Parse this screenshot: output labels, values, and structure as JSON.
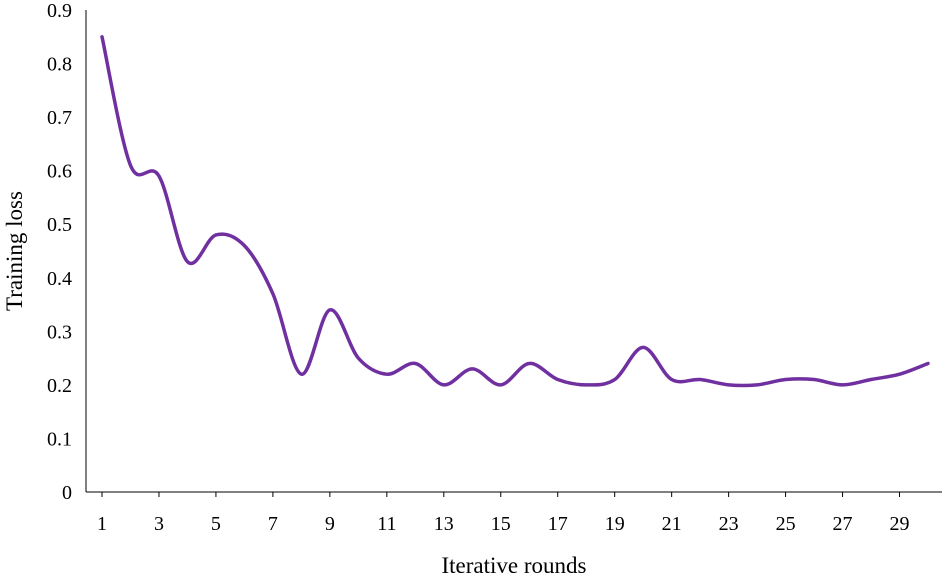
{
  "chart_data": {
    "type": "line",
    "title": "",
    "xlabel": "Iterative rounds",
    "ylabel": "Training loss",
    "xlim": [
      1,
      30
    ],
    "ylim": [
      0,
      0.9
    ],
    "x_ticks": [
      1,
      3,
      5,
      7,
      9,
      11,
      13,
      15,
      17,
      19,
      21,
      23,
      25,
      27,
      29
    ],
    "x_tick_labels": [
      "1",
      "3",
      "5",
      "7",
      "9",
      "11",
      "13",
      "15",
      "17",
      "19",
      "21",
      "23",
      "25",
      "27",
      "29"
    ],
    "y_ticks": [
      0,
      0.1,
      0.2,
      0.3,
      0.4,
      0.5,
      0.6,
      0.7,
      0.8,
      0.9
    ],
    "y_tick_labels": [
      "0",
      "0.1",
      "0.2",
      "0.3",
      "0.4",
      "0.5",
      "0.6",
      "0.7",
      "0.8",
      "0.9"
    ],
    "grid": false,
    "legend": "none",
    "line_color": "#7030a0",
    "series": [
      {
        "x": [
          1,
          2,
          3,
          4,
          5,
          6,
          7,
          8,
          9,
          10,
          11,
          12,
          13,
          14,
          15,
          16,
          17,
          18,
          19,
          20,
          21,
          22,
          23,
          24,
          25,
          26,
          27,
          28,
          29,
          30
        ],
        "values": [
          0.85,
          0.61,
          0.59,
          0.43,
          0.48,
          0.46,
          0.37,
          0.22,
          0.34,
          0.25,
          0.22,
          0.24,
          0.2,
          0.23,
          0.2,
          0.24,
          0.21,
          0.2,
          0.21,
          0.27,
          0.21,
          0.21,
          0.2,
          0.2,
          0.21,
          0.21,
          0.2,
          0.21,
          0.22,
          0.24
        ]
      }
    ]
  }
}
